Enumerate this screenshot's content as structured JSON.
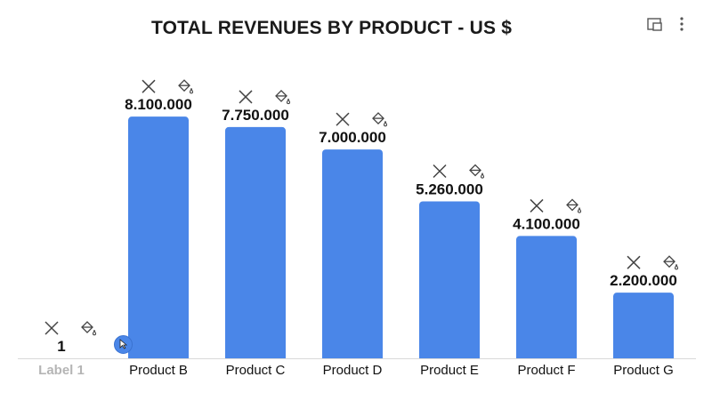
{
  "header": {
    "title": "TOTAL REVENUES BY PRODUCT - US $",
    "icons": [
      "expand-icon",
      "more-vertical-icon"
    ]
  },
  "bar_actions": {
    "icons": [
      "close-icon",
      "paint-bucket-icon"
    ]
  },
  "colors": {
    "bar": "#4a86e8",
    "label": "#111111",
    "muted_label": "#b5b5b5",
    "axis": "#d9d9d9",
    "icon": "#444444"
  },
  "chart_data": {
    "type": "bar",
    "title": "TOTAL REVENUES BY PRODUCT - US $",
    "xlabel": "",
    "ylabel": "",
    "categories": [
      "Label 1",
      "Product B",
      "Product C",
      "Product D",
      "Product E",
      "Product F",
      "Product G"
    ],
    "values": [
      1,
      8100000,
      7750000,
      7000000,
      5260000,
      4100000,
      2200000
    ],
    "value_labels": [
      "1",
      "8.100.000",
      "7.750.000",
      "7.000.000",
      "5.260.000",
      "4.100.000",
      "2.200.000"
    ],
    "muted_categories": [
      "Label 1"
    ],
    "ylim": [
      0,
      10400000
    ],
    "grid": false,
    "legend": "none"
  }
}
